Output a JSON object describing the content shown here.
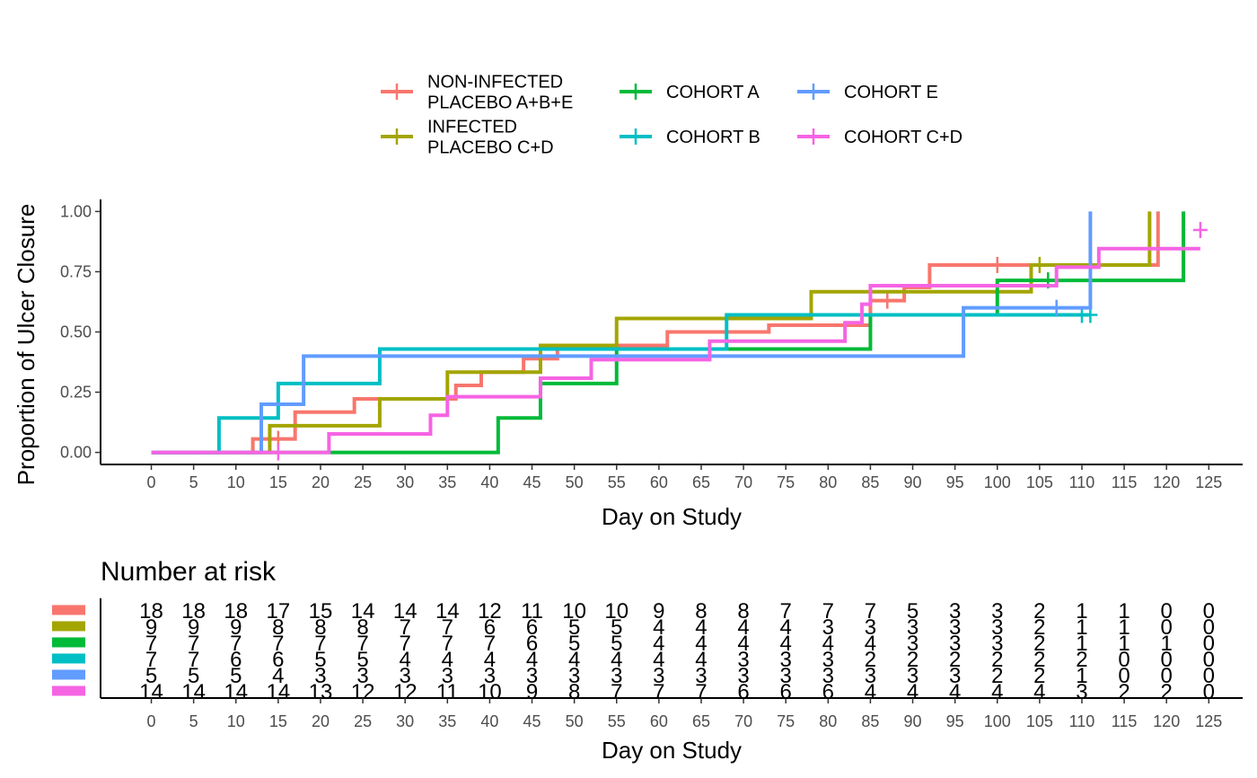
{
  "chart_data": [
    {
      "type": "line",
      "step": true,
      "xlabel": "Day on Study",
      "ylabel": "Proportion of Ulcer Closure",
      "xlim": [
        -6,
        129
      ],
      "ylim": [
        -0.05,
        1.05
      ],
      "xticks": [
        0,
        5,
        10,
        15,
        20,
        25,
        30,
        35,
        40,
        45,
        50,
        55,
        60,
        65,
        70,
        75,
        80,
        85,
        90,
        95,
        100,
        105,
        110,
        115,
        120,
        125
      ],
      "yticks": [
        0,
        0.25,
        0.5,
        0.75,
        1
      ],
      "ytick_labels": [
        "0.00",
        "0.25",
        "0.50",
        "0.75",
        "1.00"
      ],
      "grid": false,
      "legend_position": "top",
      "series": [
        {
          "name": "NON-INFECTED\nPLACEBO A+B+E",
          "color": "#F8766D",
          "points": [
            [
              0,
              0
            ],
            [
              12,
              0.056
            ],
            [
              15,
              0.056
            ],
            [
              17,
              0.167
            ],
            [
              24,
              0.222
            ],
            [
              27,
              0.222
            ],
            [
              36,
              0.278
            ],
            [
              39,
              0.333
            ],
            [
              44,
              0.389
            ],
            [
              48,
              0.444
            ],
            [
              61,
              0.5
            ],
            [
              73,
              0.528
            ],
            [
              85,
              0.63
            ],
            [
              89,
              0.685
            ],
            [
              92,
              0.778
            ],
            [
              119,
              1.0
            ]
          ],
          "end_x": 119,
          "censor": [
            [
              15,
              0.056
            ],
            [
              87,
              0.63
            ],
            [
              100,
              0.778
            ]
          ]
        },
        {
          "name": "INFECTED\nPLACEBO C+D",
          "color": "#A3A500",
          "points": [
            [
              0,
              0
            ],
            [
              14,
              0.111
            ],
            [
              27,
              0.222
            ],
            [
              35,
              0.333
            ],
            [
              46,
              0.444
            ],
            [
              55,
              0.556
            ],
            [
              78,
              0.667
            ],
            [
              104,
              0.778
            ],
            [
              118,
              1.0
            ]
          ],
          "end_x": 118,
          "censor": [
            [
              105,
              0.778
            ]
          ]
        },
        {
          "name": "COHORT A",
          "color": "#00BA38",
          "points": [
            [
              0,
              0
            ],
            [
              41,
              0.143
            ],
            [
              46,
              0.286
            ],
            [
              55,
              0.429
            ],
            [
              85,
              0.571
            ],
            [
              100,
              0.714
            ],
            [
              122,
              1.0
            ]
          ],
          "end_x": 122,
          "censor": [
            [
              106,
              0.714
            ]
          ]
        },
        {
          "name": "COHORT B",
          "color": "#00BFC4",
          "points": [
            [
              0,
              0
            ],
            [
              8,
              0.143
            ],
            [
              15,
              0.286
            ],
            [
              27,
              0.429
            ],
            [
              68,
              0.571
            ]
          ],
          "end_x": 111,
          "censor": [
            [
              84,
              0.571
            ],
            [
              110,
              0.571
            ],
            [
              111,
              0.571
            ]
          ]
        },
        {
          "name": "COHORT E",
          "color": "#619CFF",
          "points": [
            [
              0,
              0
            ],
            [
              13,
              0.2
            ],
            [
              18,
              0.4
            ],
            [
              96,
              0.6
            ],
            [
              111,
              1.0
            ]
          ],
          "end_x": 111,
          "censor": [
            [
              107,
              0.6
            ]
          ]
        },
        {
          "name": "COHORT C+D",
          "color": "#F564E3",
          "points": [
            [
              0,
              0
            ],
            [
              21,
              0.077
            ],
            [
              33,
              0.154
            ],
            [
              35,
              0.231
            ],
            [
              46,
              0.308
            ],
            [
              52,
              0.385
            ],
            [
              66,
              0.462
            ],
            [
              82,
              0.538
            ],
            [
              84,
              0.615
            ],
            [
              85,
              0.692
            ],
            [
              107,
              0.769
            ],
            [
              112,
              0.846
            ]
          ],
          "end_x": 124,
          "censor": [
            [
              15,
              0.0
            ],
            [
              124,
              0.923
            ]
          ]
        }
      ]
    },
    {
      "type": "table",
      "title": "Number at risk",
      "xlabel": "Day on Study",
      "xticks": [
        0,
        5,
        10,
        15,
        20,
        25,
        30,
        35,
        40,
        45,
        50,
        55,
        60,
        65,
        70,
        75,
        80,
        85,
        90,
        95,
        100,
        105,
        110,
        115,
        120,
        125
      ],
      "rows": [
        {
          "color": "#F8766D",
          "values": [
            18,
            18,
            18,
            17,
            15,
            14,
            14,
            14,
            12,
            11,
            10,
            10,
            9,
            8,
            8,
            7,
            7,
            7,
            5,
            3,
            3,
            2,
            1,
            1,
            0,
            0
          ]
        },
        {
          "color": "#A3A500",
          "values": [
            9,
            9,
            9,
            8,
            8,
            8,
            7,
            7,
            6,
            6,
            5,
            5,
            4,
            4,
            4,
            4,
            3,
            3,
            3,
            3,
            3,
            2,
            1,
            1,
            0,
            0
          ]
        },
        {
          "color": "#00BA38",
          "values": [
            7,
            7,
            7,
            7,
            7,
            7,
            7,
            7,
            7,
            6,
            5,
            5,
            4,
            4,
            4,
            4,
            4,
            4,
            3,
            3,
            3,
            2,
            1,
            1,
            1,
            0
          ]
        },
        {
          "color": "#00BFC4",
          "values": [
            7,
            7,
            6,
            6,
            5,
            5,
            4,
            4,
            4,
            4,
            4,
            4,
            4,
            4,
            3,
            3,
            3,
            2,
            2,
            2,
            2,
            2,
            2,
            0,
            0,
            0
          ]
        },
        {
          "color": "#619CFF",
          "values": [
            5,
            5,
            5,
            4,
            3,
            3,
            3,
            3,
            3,
            3,
            3,
            3,
            3,
            3,
            3,
            3,
            3,
            3,
            3,
            3,
            2,
            2,
            1,
            0,
            0,
            0
          ]
        },
        {
          "color": "#F564E3",
          "values": [
            14,
            14,
            14,
            14,
            13,
            12,
            12,
            11,
            10,
            9,
            8,
            7,
            7,
            7,
            6,
            6,
            6,
            4,
            4,
            4,
            4,
            4,
            3,
            2,
            2,
            0
          ]
        }
      ]
    }
  ]
}
